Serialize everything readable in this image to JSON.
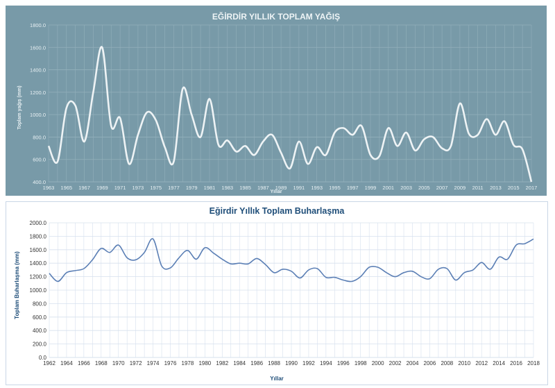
{
  "chart_data": [
    {
      "type": "line",
      "title": "EĞİRDİR YILLIK TOPLAM YAĞIŞ",
      "xlabel": "Yıllar",
      "ylabel": "Toplam yağış (mm)",
      "ylim": [
        400,
        1800
      ],
      "yticks": [
        "400.0",
        "600.0",
        "800.0",
        "1000.0",
        "1200.0",
        "1400.0",
        "1600.0",
        "1800.0"
      ],
      "xticks": [
        "1963",
        "1965",
        "1967",
        "1969",
        "1971",
        "1973",
        "1975",
        "1977",
        "1979",
        "1981",
        "1983",
        "1985",
        "1987",
        "1989",
        "1991",
        "1993",
        "1995",
        "1997",
        "1999",
        "2001",
        "2003",
        "2005",
        "2007",
        "2009",
        "2011",
        "2013",
        "2015",
        "2017"
      ],
      "grid": true,
      "colors": {
        "background": "#789aa8",
        "line": "#eef3f5",
        "grid": "#93b0bb"
      },
      "x": [
        1963,
        1964,
        1965,
        1966,
        1967,
        1968,
        1969,
        1970,
        1971,
        1972,
        1973,
        1974,
        1975,
        1976,
        1977,
        1978,
        1979,
        1980,
        1981,
        1982,
        1983,
        1984,
        1985,
        1986,
        1987,
        1988,
        1989,
        1990,
        1991,
        1992,
        1993,
        1994,
        1995,
        1996,
        1997,
        1998,
        1999,
        2000,
        2001,
        2002,
        2003,
        2004,
        2005,
        2006,
        2007,
        2008,
        2009,
        2010,
        2011,
        2012,
        2013,
        2014,
        2015,
        2016,
        2017
      ],
      "values": [
        720,
        580,
        1060,
        1080,
        760,
        1200,
        1600,
        900,
        970,
        560,
        820,
        1020,
        950,
        710,
        580,
        1230,
        1000,
        800,
        1140,
        730,
        770,
        670,
        720,
        640,
        760,
        820,
        660,
        520,
        760,
        560,
        710,
        640,
        840,
        880,
        820,
        900,
        640,
        630,
        880,
        720,
        840,
        680,
        780,
        800,
        700,
        720,
        1100,
        830,
        820,
        960,
        820,
        940,
        730,
        690,
        400
      ]
    },
    {
      "type": "line",
      "title": "Eğirdir Yıllık Toplam Buharlaşma",
      "xlabel": "Yıllar",
      "ylabel": "Toplam Buharlaşma (mm)",
      "ylim": [
        0,
        2000
      ],
      "yticks": [
        "0.0",
        "200.0",
        "400.0",
        "600.0",
        "800.0",
        "1000.0",
        "1200.0",
        "1400.0",
        "1600.0",
        "1800.0",
        "2000.0"
      ],
      "xticks": [
        "1962",
        "1964",
        "1966",
        "1968",
        "1970",
        "1972",
        "1974",
        "1976",
        "1978",
        "1980",
        "1982",
        "1984",
        "1986",
        "1988",
        "1990",
        "1992",
        "1994",
        "1996",
        "1998",
        "2000",
        "2002",
        "2004",
        "2006",
        "2008",
        "2010",
        "2012",
        "2014",
        "2016",
        "2018"
      ],
      "grid": true,
      "colors": {
        "background": "#ffffff",
        "line": "#5b7fb5",
        "grid": "#d6e0ee"
      },
      "x": [
        1962,
        1963,
        1964,
        1965,
        1966,
        1967,
        1968,
        1969,
        1970,
        1971,
        1972,
        1973,
        1974,
        1975,
        1976,
        1977,
        1978,
        1979,
        1980,
        1981,
        1982,
        1983,
        1984,
        1985,
        1986,
        1987,
        1988,
        1989,
        1990,
        1991,
        1992,
        1993,
        1994,
        1995,
        1996,
        1997,
        1998,
        1999,
        2000,
        2001,
        2002,
        2003,
        2004,
        2005,
        2006,
        2007,
        2008,
        2009,
        2010,
        2011,
        2012,
        2013,
        2014,
        2015,
        2016,
        2017,
        2018
      ],
      "values": [
        1250,
        1130,
        1260,
        1290,
        1320,
        1450,
        1620,
        1560,
        1670,
        1480,
        1450,
        1560,
        1760,
        1360,
        1330,
        1480,
        1590,
        1460,
        1630,
        1550,
        1460,
        1390,
        1400,
        1390,
        1470,
        1380,
        1260,
        1310,
        1280,
        1180,
        1300,
        1320,
        1190,
        1190,
        1150,
        1130,
        1200,
        1340,
        1340,
        1260,
        1200,
        1260,
        1280,
        1200,
        1170,
        1310,
        1320,
        1150,
        1260,
        1300,
        1410,
        1310,
        1490,
        1460,
        1670,
        1690,
        1760
      ]
    }
  ]
}
